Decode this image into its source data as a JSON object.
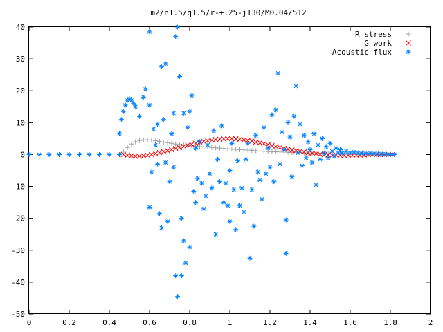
{
  "chart_data": {
    "type": "scatter",
    "title": "m2/n1.5/q1.5/r-+.25-j130/M0.04/512",
    "xlabel": "",
    "ylabel": "",
    "xlim": [
      0,
      2
    ],
    "ylim": [
      -50,
      40
    ],
    "xticks": [
      "0",
      "0.2",
      "0.4",
      "0.6",
      "0.8",
      "1",
      "1.2",
      "1.4",
      "1.6",
      "1.8",
      "2"
    ],
    "yticks": [
      "-50",
      "-40",
      "-30",
      "-20",
      "-10",
      "0",
      "10",
      "20",
      "30",
      "40"
    ],
    "legend_position": "top-right",
    "grid": false,
    "series": [
      {
        "name": "R stress",
        "marker": "+",
        "color": "#a0a0a4",
        "points": [
          [
            0.45,
            0.0
          ],
          [
            0.47,
            1.0
          ],
          [
            0.49,
            2.2
          ],
          [
            0.51,
            3.3
          ],
          [
            0.53,
            4.0
          ],
          [
            0.55,
            4.4
          ],
          [
            0.57,
            4.6
          ],
          [
            0.59,
            4.6
          ],
          [
            0.61,
            4.5
          ],
          [
            0.63,
            4.3
          ],
          [
            0.65,
            4.1
          ],
          [
            0.67,
            3.9
          ],
          [
            0.69,
            3.7
          ],
          [
            0.71,
            3.5
          ],
          [
            0.73,
            3.3
          ],
          [
            0.75,
            3.1
          ],
          [
            0.77,
            3.0
          ],
          [
            0.79,
            2.8
          ],
          [
            0.81,
            2.7
          ],
          [
            0.83,
            2.6
          ],
          [
            0.85,
            2.5
          ],
          [
            0.87,
            2.4
          ],
          [
            0.89,
            2.3
          ],
          [
            0.91,
            2.2
          ],
          [
            0.93,
            2.1
          ],
          [
            0.95,
            2.0
          ],
          [
            0.97,
            1.9
          ],
          [
            0.99,
            1.8
          ],
          [
            1.01,
            1.7
          ],
          [
            1.03,
            1.6
          ],
          [
            1.05,
            1.5
          ],
          [
            1.07,
            1.45
          ],
          [
            1.09,
            1.4
          ],
          [
            1.11,
            1.3
          ],
          [
            1.13,
            1.2
          ],
          [
            1.15,
            1.1
          ],
          [
            1.17,
            1.0
          ],
          [
            1.19,
            0.95
          ],
          [
            1.21,
            0.9
          ],
          [
            1.23,
            0.85
          ],
          [
            1.25,
            0.8
          ],
          [
            1.27,
            0.75
          ],
          [
            1.29,
            0.7
          ],
          [
            1.31,
            0.65
          ],
          [
            1.33,
            0.6
          ],
          [
            1.35,
            0.55
          ],
          [
            1.37,
            0.5
          ],
          [
            1.39,
            0.45
          ],
          [
            1.41,
            0.4
          ],
          [
            1.43,
            0.35
          ],
          [
            1.45,
            0.3
          ],
          [
            1.47,
            0.27
          ],
          [
            1.49,
            0.24
          ],
          [
            1.51,
            0.21
          ],
          [
            1.53,
            0.18
          ],
          [
            1.55,
            0.15
          ],
          [
            1.57,
            0.12
          ],
          [
            1.59,
            0.1
          ],
          [
            1.61,
            0.08
          ],
          [
            1.63,
            0.06
          ],
          [
            1.65,
            0.05
          ],
          [
            1.67,
            0.04
          ],
          [
            1.69,
            0.03
          ],
          [
            1.71,
            0.02
          ],
          [
            1.73,
            0.02
          ],
          [
            1.75,
            0.01
          ],
          [
            1.77,
            0.01
          ],
          [
            1.79,
            0.0
          ],
          [
            1.81,
            0.0
          ]
        ]
      },
      {
        "name": "G work",
        "marker": "x",
        "color": "#ff0000",
        "points": [
          [
            0.47,
            0.0
          ],
          [
            0.49,
            -0.2
          ],
          [
            0.51,
            -0.4
          ],
          [
            0.53,
            -0.5
          ],
          [
            0.55,
            -0.5
          ],
          [
            0.57,
            -0.4
          ],
          [
            0.59,
            -0.2
          ],
          [
            0.61,
            0.0
          ],
          [
            0.63,
            0.3
          ],
          [
            0.65,
            0.6
          ],
          [
            0.67,
            0.9
          ],
          [
            0.69,
            1.2
          ],
          [
            0.71,
            1.5
          ],
          [
            0.73,
            1.9
          ],
          [
            0.75,
            2.2
          ],
          [
            0.77,
            2.6
          ],
          [
            0.79,
            2.9
          ],
          [
            0.81,
            3.2
          ],
          [
            0.83,
            3.5
          ],
          [
            0.85,
            3.8
          ],
          [
            0.87,
            4.1
          ],
          [
            0.89,
            4.3
          ],
          [
            0.91,
            4.5
          ],
          [
            0.93,
            4.7
          ],
          [
            0.95,
            4.8
          ],
          [
            0.97,
            4.9
          ],
          [
            0.99,
            5.0
          ],
          [
            1.01,
            5.0
          ],
          [
            1.03,
            4.9
          ],
          [
            1.05,
            4.8
          ],
          [
            1.07,
            4.6
          ],
          [
            1.09,
            4.4
          ],
          [
            1.11,
            4.2
          ],
          [
            1.13,
            3.9
          ],
          [
            1.15,
            3.7
          ],
          [
            1.17,
            3.4
          ],
          [
            1.19,
            3.1
          ],
          [
            1.21,
            2.8
          ],
          [
            1.23,
            2.5
          ],
          [
            1.25,
            2.2
          ],
          [
            1.27,
            1.9
          ],
          [
            1.29,
            1.7
          ],
          [
            1.31,
            1.4
          ],
          [
            1.33,
            1.2
          ],
          [
            1.35,
            1.0
          ],
          [
            1.37,
            0.8
          ],
          [
            1.39,
            0.6
          ],
          [
            1.41,
            0.4
          ],
          [
            1.43,
            0.3
          ],
          [
            1.45,
            0.1
          ],
          [
            1.47,
            0.0
          ],
          [
            1.49,
            -0.1
          ],
          [
            1.51,
            -0.2
          ],
          [
            1.53,
            -0.2
          ],
          [
            1.55,
            -0.3
          ],
          [
            1.57,
            -0.3
          ],
          [
            1.59,
            -0.3
          ],
          [
            1.61,
            -0.2
          ],
          [
            1.63,
            -0.2
          ],
          [
            1.65,
            -0.1
          ],
          [
            1.67,
            -0.1
          ],
          [
            1.69,
            0.0
          ],
          [
            1.71,
            0.0
          ],
          [
            1.73,
            0.0
          ],
          [
            1.75,
            0.0
          ],
          [
            1.77,
            0.0
          ],
          [
            1.79,
            0.0
          ],
          [
            1.81,
            0.0
          ]
        ]
      },
      {
        "name": "Acoustic flux",
        "marker": "*",
        "color": "#0080ff",
        "points": [
          [
            0.0,
            0.0
          ],
          [
            0.05,
            0.0
          ],
          [
            0.1,
            0.0
          ],
          [
            0.15,
            0.0
          ],
          [
            0.2,
            0.0
          ],
          [
            0.25,
            0.0
          ],
          [
            0.3,
            0.0
          ],
          [
            0.35,
            0.0
          ],
          [
            0.4,
            0.0
          ],
          [
            0.45,
            0.0
          ],
          [
            0.45,
            6.6
          ],
          [
            0.46,
            11.0
          ],
          [
            0.47,
            13.5
          ],
          [
            0.48,
            15.5
          ],
          [
            0.49,
            17.0
          ],
          [
            0.5,
            17.5
          ],
          [
            0.51,
            17.0
          ],
          [
            0.52,
            16.0
          ],
          [
            0.53,
            15.0
          ],
          [
            0.55,
            12.0
          ],
          [
            0.57,
            18.0
          ],
          [
            0.58,
            20.5
          ],
          [
            0.6,
            15.5
          ],
          [
            0.6,
            38.5
          ],
          [
            0.61,
            -5.5
          ],
          [
            0.6,
            -16.5
          ],
          [
            0.62,
            8.0
          ],
          [
            0.63,
            3.0
          ],
          [
            0.64,
            9.5
          ],
          [
            0.64,
            -3.0
          ],
          [
            0.65,
            -18.5
          ],
          [
            0.66,
            -23.0
          ],
          [
            0.66,
            27.5
          ],
          [
            0.67,
            11.0
          ],
          [
            0.68,
            28.5
          ],
          [
            0.68,
            -2.5
          ],
          [
            0.69,
            -21.0
          ],
          [
            0.7,
            -8.5
          ],
          [
            0.71,
            6.5
          ],
          [
            0.72,
            13.0
          ],
          [
            0.72,
            -4.0
          ],
          [
            0.73,
            -38.0
          ],
          [
            0.73,
            37.0
          ],
          [
            0.74,
            40.0
          ],
          [
            0.74,
            -44.5
          ],
          [
            0.75,
            24.5
          ],
          [
            0.76,
            -20.0
          ],
          [
            0.76,
            -38.0
          ],
          [
            0.77,
            13.0
          ],
          [
            0.77,
            -27.0
          ],
          [
            0.78,
            -34.0
          ],
          [
            0.79,
            8.5
          ],
          [
            0.8,
            -29.0
          ],
          [
            0.8,
            13.5
          ],
          [
            0.81,
            18.5
          ],
          [
            0.82,
            -11.5
          ],
          [
            0.83,
            2.0
          ],
          [
            0.83,
            -15.0
          ],
          [
            0.84,
            -7.5
          ],
          [
            0.85,
            4.0
          ],
          [
            0.86,
            -9.0
          ],
          [
            0.87,
            -17.0
          ],
          [
            0.88,
            -13.0
          ],
          [
            0.89,
            3.0
          ],
          [
            0.9,
            -6.0
          ],
          [
            0.91,
            -10.5
          ],
          [
            0.92,
            7.5
          ],
          [
            0.93,
            -25.0
          ],
          [
            0.94,
            -1.5
          ],
          [
            0.95,
            -8.5
          ],
          [
            0.96,
            9.0
          ],
          [
            0.97,
            -15.0
          ],
          [
            0.98,
            -9.0
          ],
          [
            0.99,
            -16.0
          ],
          [
            1.0,
            -5.0
          ],
          [
            1.0,
            -21.0
          ],
          [
            1.01,
            3.5
          ],
          [
            1.02,
            -11.0
          ],
          [
            1.03,
            -23.5
          ],
          [
            1.04,
            -2.0
          ],
          [
            1.05,
            -16.0
          ],
          [
            1.06,
            -10.5
          ],
          [
            1.07,
            -18.0
          ],
          [
            1.08,
            -1.5
          ],
          [
            1.09,
            3.5
          ],
          [
            1.1,
            -32.5
          ],
          [
            1.11,
            -11.0
          ],
          [
            1.12,
            -22.5
          ],
          [
            1.13,
            6.0
          ],
          [
            1.14,
            -5.5
          ],
          [
            1.15,
            -8.0
          ],
          [
            1.16,
            -14.0
          ],
          [
            1.17,
            8.5
          ],
          [
            1.18,
            -6.0
          ],
          [
            1.19,
            2.0
          ],
          [
            1.2,
            -4.0
          ],
          [
            1.21,
            12.5
          ],
          [
            1.22,
            -8.5
          ],
          [
            1.23,
            14.0
          ],
          [
            1.24,
            25.5
          ],
          [
            1.25,
            -3.0
          ],
          [
            1.26,
            7.0
          ],
          [
            1.27,
            1.5
          ],
          [
            1.28,
            -20.5
          ],
          [
            1.28,
            -31.0
          ],
          [
            1.29,
            10.0
          ],
          [
            1.3,
            5.5
          ],
          [
            1.31,
            -7.0
          ],
          [
            1.32,
            12.0
          ],
          [
            1.33,
            21.5
          ],
          [
            1.34,
            0.5
          ],
          [
            1.35,
            9.5
          ],
          [
            1.36,
            -3.5
          ],
          [
            1.37,
            6.0
          ],
          [
            1.38,
            -1.0
          ],
          [
            1.39,
            4.0
          ],
          [
            1.4,
            1.5
          ],
          [
            1.41,
            -2.5
          ],
          [
            1.42,
            6.5
          ],
          [
            1.43,
            -9.5
          ],
          [
            1.44,
            3.0
          ],
          [
            1.45,
            -1.5
          ],
          [
            1.46,
            5.0
          ],
          [
            1.47,
            0.5
          ],
          [
            1.48,
            2.5
          ],
          [
            1.49,
            -1.0
          ],
          [
            1.5,
            3.5
          ],
          [
            1.51,
            1.0
          ],
          [
            1.52,
            -0.5
          ],
          [
            1.53,
            2.0
          ],
          [
            1.54,
            0.5
          ],
          [
            1.55,
            1.5
          ],
          [
            1.56,
            0.5
          ],
          [
            1.58,
            1.0
          ],
          [
            1.6,
            0.5
          ],
          [
            1.62,
            0.8
          ],
          [
            1.64,
            0.5
          ],
          [
            1.66,
            0.5
          ],
          [
            1.68,
            0.3
          ],
          [
            1.7,
            0.4
          ],
          [
            1.72,
            0.3
          ],
          [
            1.74,
            0.2
          ],
          [
            1.76,
            0.1
          ],
          [
            1.78,
            0.1
          ],
          [
            1.8,
            0.0
          ],
          [
            1.82,
            0.0
          ]
        ]
      }
    ]
  }
}
